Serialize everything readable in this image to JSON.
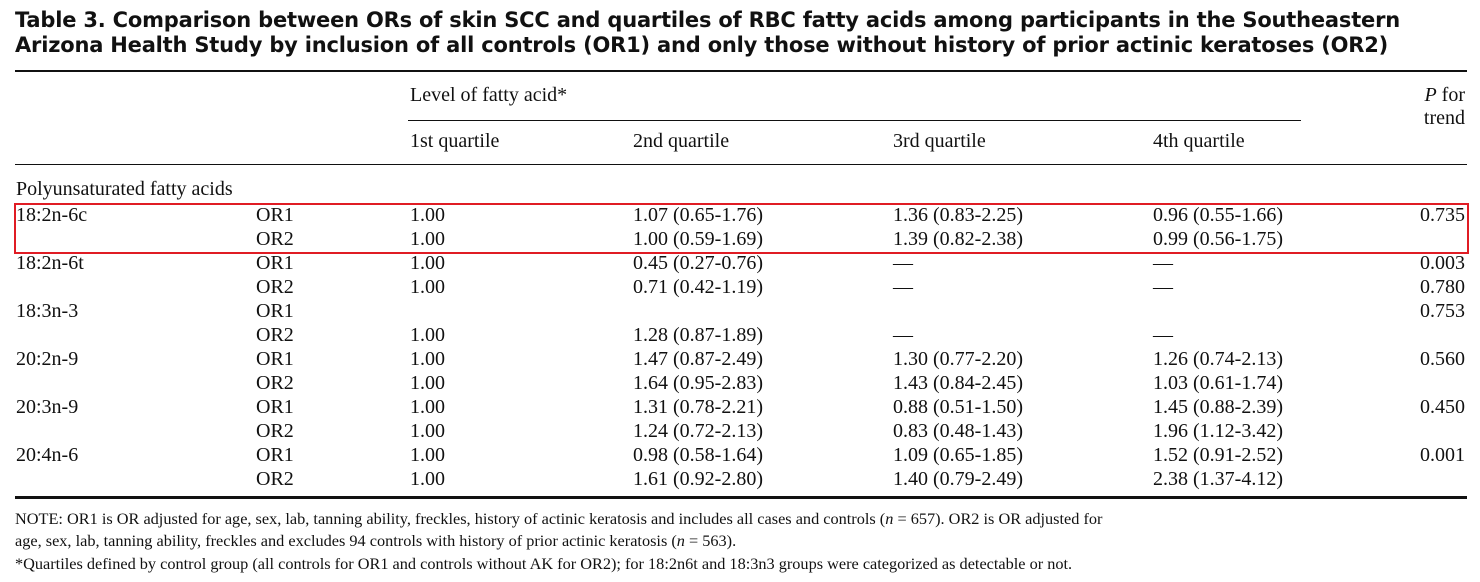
{
  "title_line1": "Table 3.  Comparison between ORs of skin SCC and quartiles of RBC fatty acids among participants in the Southeastern",
  "title_line2": "Arizona Health Study by inclusion of all controls (OR1) and only those without history of prior actinic keratoses (OR2)",
  "header": {
    "group": "Level of fatty acid*",
    "q1": "1st quartile",
    "q2": "2nd quartile",
    "q3": "3rd quartile",
    "q4": "4th quartile",
    "p_line1": "P for",
    "p_line2": "trend"
  },
  "section": "Polyunsaturated fatty acids",
  "highlight_color": "#e01c24",
  "rows": [
    {
      "acid": "18:2n-6c",
      "model": "OR1",
      "q1": "1.00",
      "q2": "1.07 (0.65-1.76)",
      "q3": "1.36 (0.83-2.25)",
      "q4": "0.96 (0.55-1.66)",
      "p": "0.735"
    },
    {
      "acid": "",
      "model": "OR2",
      "q1": "1.00",
      "q2": "1.00 (0.59-1.69)",
      "q3": "1.39 (0.82-2.38)",
      "q4": "0.99 (0.56-1.75)",
      "p": ""
    },
    {
      "acid": "18:2n-6t",
      "model": "OR1",
      "q1": "1.00",
      "q2": "0.45 (0.27-0.76)",
      "q3": "—",
      "q4": "—",
      "p": "0.003"
    },
    {
      "acid": "",
      "model": "OR2",
      "q1": "1.00",
      "q2": "0.71 (0.42-1.19)",
      "q3": "—",
      "q4": "—",
      "p": "0.780"
    },
    {
      "acid": "18:3n-3",
      "model": "OR1",
      "q1": "",
      "q2": "",
      "q3": "",
      "q4": "",
      "p": "0.753"
    },
    {
      "acid": "",
      "model": "OR2",
      "q1": "1.00",
      "q2": "1.28 (0.87-1.89)",
      "q3": "—",
      "q4": "—",
      "p": ""
    },
    {
      "acid": "20:2n-9",
      "model": "OR1",
      "q1": "1.00",
      "q2": "1.47 (0.87-2.49)",
      "q3": "1.30 (0.77-2.20)",
      "q4": "1.26 (0.74-2.13)",
      "p": "0.560"
    },
    {
      "acid": "",
      "model": "OR2",
      "q1": "1.00",
      "q2": "1.64 (0.95-2.83)",
      "q3": "1.43 (0.84-2.45)",
      "q4": "1.03 (0.61-1.74)",
      "p": ""
    },
    {
      "acid": "20:3n-9",
      "model": "OR1",
      "q1": "1.00",
      "q2": "1.31 (0.78-2.21)",
      "q3": "0.88 (0.51-1.50)",
      "q4": "1.45 (0.88-2.39)",
      "p": "0.450"
    },
    {
      "acid": "",
      "model": "OR2",
      "q1": "1.00",
      "q2": "1.24 (0.72-2.13)",
      "q3": "0.83 (0.48-1.43)",
      "q4": "1.96 (1.12-3.42)",
      "p": ""
    },
    {
      "acid": "20:4n-6",
      "model": "OR1",
      "q1": "1.00",
      "q2": "0.98 (0.58-1.64)",
      "q3": "1.09 (0.65-1.85)",
      "q4": "1.52 (0.91-2.52)",
      "p": "0.001"
    },
    {
      "acid": "",
      "model": "OR2",
      "q1": "1.00",
      "q2": "1.61 (0.92-2.80)",
      "q3": "1.40 (0.79-2.49)",
      "q4": "2.38 (1.37-4.12)",
      "p": ""
    }
  ],
  "notes": {
    "line1": "NOTE: OR1 is OR adjusted for age, sex, lab, tanning ability, freckles, history of actinic keratosis and includes all cases and controls (n = 657). OR2 is OR adjusted for",
    "line2": "age, sex, lab, tanning ability, freckles and excludes 94 controls with history of prior actinic keratosis (n = 563).",
    "line3": "*Quartiles defined by control group (all controls for OR1 and controls without AK for OR2); for 18:2n6t and 18:3n3 groups were categorized as detectable or not."
  }
}
